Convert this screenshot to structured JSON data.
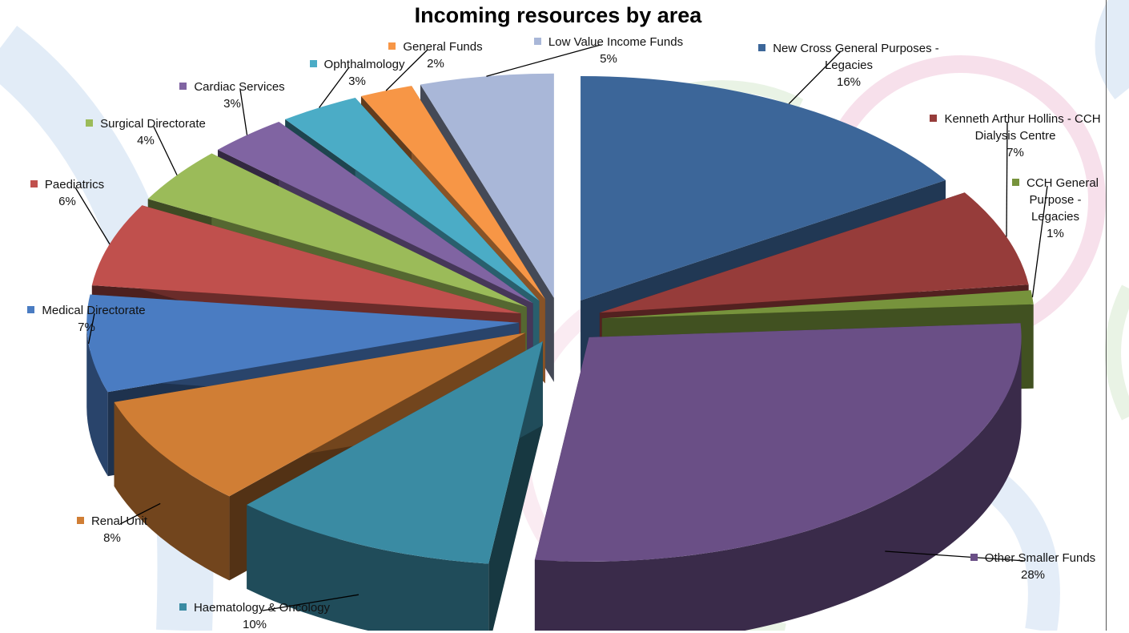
{
  "chart_data": {
    "type": "pie",
    "title": "Incoming resources by area",
    "slices": [
      {
        "name": "New Cross General Purposes - Legacies",
        "value": 16,
        "label": "16%",
        "color": "#3C6699"
      },
      {
        "name": "Kenneth Arthur Hollins - CCH Dialysis Centre",
        "value": 7,
        "label": "7%",
        "color": "#963C3A"
      },
      {
        "name": "CCH General Purpose - Legacies",
        "value": 1,
        "label": "1%",
        "color": "#77933C"
      },
      {
        "name": "Other Smaller Funds",
        "value": 28,
        "label": "28%",
        "color": "#6A4F86"
      },
      {
        "name": "Haematology & Oncology",
        "value": 10,
        "label": "10%",
        "color": "#3A8BA3"
      },
      {
        "name": "Renal Unit",
        "value": 8,
        "label": "8%",
        "color": "#D07E35"
      },
      {
        "name": "Medical Directorate",
        "value": 7,
        "label": "7%",
        "color": "#4A7CC2"
      },
      {
        "name": "Paediatrics",
        "value": 6,
        "label": "6%",
        "color": "#C0504D"
      },
      {
        "name": "Surgical Directorate",
        "value": 4,
        "label": "4%",
        "color": "#9BBB59"
      },
      {
        "name": "Cardiac Services",
        "value": 3,
        "label": "3%",
        "color": "#8064A2"
      },
      {
        "name": "Ophthalmology",
        "value": 3,
        "label": "3%",
        "color": "#4BACC6"
      },
      {
        "name": "General Funds",
        "value": 2,
        "label": "2%",
        "color": "#F79646"
      },
      {
        "name": "Low Value Income Funds",
        "value": 5,
        "label": "5%",
        "color": "#A9B7D8"
      }
    ]
  }
}
